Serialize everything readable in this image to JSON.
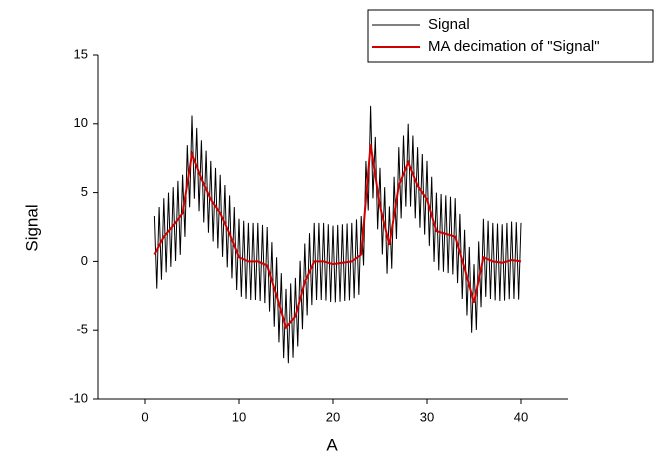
{
  "chart_data": {
    "type": "line",
    "xlabel": "A",
    "ylabel": "Signal",
    "xlim": [
      -5,
      45
    ],
    "xticks": [
      0,
      10,
      20,
      30,
      40
    ],
    "ylim": [
      -10,
      15
    ],
    "yticks": [
      -10,
      -5,
      0,
      5,
      10,
      15
    ],
    "legend": "top-right",
    "series": [
      {
        "name": "Signal",
        "color": "#000000",
        "x": [
          1,
          1.25,
          1.5,
          1.75,
          2,
          2.25,
          2.5,
          2.75,
          3,
          3.25,
          3.5,
          3.75,
          4,
          4.25,
          4.5,
          4.75,
          5,
          5.25,
          5.5,
          5.75,
          6,
          6.25,
          6.5,
          6.75,
          7,
          7.25,
          7.5,
          7.75,
          8,
          8.25,
          8.5,
          8.75,
          9,
          9.25,
          9.5,
          9.75,
          10,
          10.25,
          10.5,
          10.75,
          11,
          11.25,
          11.5,
          11.75,
          12,
          12.25,
          12.5,
          12.75,
          13,
          13.25,
          13.5,
          13.75,
          14,
          14.25,
          14.5,
          14.75,
          15,
          15.25,
          15.5,
          15.75,
          16,
          16.25,
          16.5,
          16.75,
          17,
          17.25,
          17.5,
          17.75,
          18,
          18.25,
          18.5,
          18.75,
          19,
          19.25,
          19.5,
          19.75,
          20,
          20.25,
          20.5,
          20.75,
          21,
          21.25,
          21.5,
          21.75,
          22,
          22.25,
          22.5,
          22.75,
          23,
          23.25,
          23.5,
          23.75,
          24,
          24.25,
          24.5,
          24.75,
          25,
          25.25,
          25.5,
          25.75,
          26,
          26.25,
          26.5,
          26.75,
          27,
          27.25,
          27.5,
          27.75,
          28,
          28.25,
          28.5,
          28.75,
          29,
          29.25,
          29.5,
          29.75,
          30,
          30.25,
          30.5,
          30.75,
          31,
          31.25,
          31.5,
          31.75,
          32,
          32.25,
          32.5,
          32.75,
          33,
          33.25,
          33.5,
          33.75,
          34,
          34.25,
          34.5,
          34.75,
          35,
          35.25,
          35.5,
          35.75,
          36,
          36.25,
          36.5,
          36.75,
          37,
          37.25,
          37.5,
          37.75,
          38,
          38.25,
          38.5,
          38.75,
          39,
          39.25,
          39.5,
          39.75,
          40
        ],
        "values": [
          3.3,
          -1.98,
          3.95,
          -1.33,
          4.6,
          -0.8,
          5.0,
          -0.4,
          5.4,
          0.03,
          5.85,
          0.48,
          6.3,
          1.78,
          8.45,
          3.93,
          10.6,
          4.55,
          9.7,
          3.65,
          8.8,
          2.83,
          8.05,
          2.08,
          7.3,
          1.45,
          6.8,
          0.95,
          6.3,
          0.33,
          5.55,
          -0.43,
          4.8,
          -1.23,
          3.95,
          -2.08,
          3.1,
          -2.58,
          2.95,
          -2.73,
          2.8,
          -2.8,
          2.8,
          -2.8,
          2.8,
          -2.88,
          2.65,
          -3.03,
          2.5,
          -3.65,
          1.4,
          -4.75,
          0.3,
          -5.88,
          -0.85,
          -7.03,
          -2.0,
          -7.4,
          -1.6,
          -7.0,
          -1.2,
          -6.18,
          0.05,
          -4.93,
          1.3,
          -3.93,
          2.05,
          -3.18,
          2.8,
          -2.8,
          2.8,
          -2.8,
          2.8,
          -2.85,
          2.7,
          -2.95,
          2.6,
          -2.98,
          2.65,
          -2.93,
          2.7,
          -2.88,
          2.75,
          -2.83,
          2.8,
          -2.68,
          3.05,
          -2.43,
          3.3,
          -0.3,
          7.3,
          3.7,
          11.3,
          4.58,
          9.05,
          2.33,
          6.8,
          0.5,
          5.4,
          -0.9,
          4.0,
          -0.53,
          6.15,
          1.63,
          8.3,
          3.13,
          9.15,
          3.98,
          10.0,
          3.98,
          9.15,
          3.13,
          8.3,
          2.45,
          7.8,
          1.95,
          7.3,
          1.13,
          6.15,
          -0.03,
          5.0,
          -0.65,
          4.9,
          -0.75,
          4.8,
          -0.85,
          4.7,
          -0.95,
          4.6,
          -1.58,
          3.45,
          -2.73,
          2.3,
          -3.93,
          1.05,
          -5.18,
          -0.2,
          -4.98,
          1.45,
          -3.33,
          3.1,
          -2.58,
          2.95,
          -2.73,
          2.8,
          -2.83,
          2.75,
          -2.88,
          2.7,
          -2.85,
          2.8,
          -2.75,
          2.9,
          -2.73,
          2.85,
          -2.78,
          2.8
        ]
      },
      {
        "name": "MA decimation of \"Signal\"",
        "color": "#d00000",
        "x": [
          1,
          2,
          3,
          4,
          5,
          6,
          7,
          8,
          9,
          10,
          11,
          12,
          13,
          14,
          15,
          16,
          17,
          18,
          19,
          20,
          21,
          22,
          23,
          24,
          25,
          26,
          27,
          28,
          29,
          30,
          31,
          32,
          33,
          34,
          35,
          36,
          37,
          38,
          39,
          40
        ],
        "values": [
          0.5,
          1.8,
          2.6,
          3.5,
          7.8,
          6.0,
          4.5,
          3.5,
          2.0,
          0.3,
          0.0,
          0.0,
          -0.3,
          -2.5,
          -4.8,
          -4.0,
          -1.5,
          0.0,
          0.0,
          -0.2,
          -0.1,
          0.0,
          0.5,
          8.5,
          4.0,
          1.2,
          5.5,
          7.2,
          5.5,
          4.5,
          2.2,
          2.0,
          1.8,
          -0.5,
          -3.0,
          0.3,
          0.0,
          -0.1,
          0.1,
          0.0
        ]
      }
    ]
  }
}
